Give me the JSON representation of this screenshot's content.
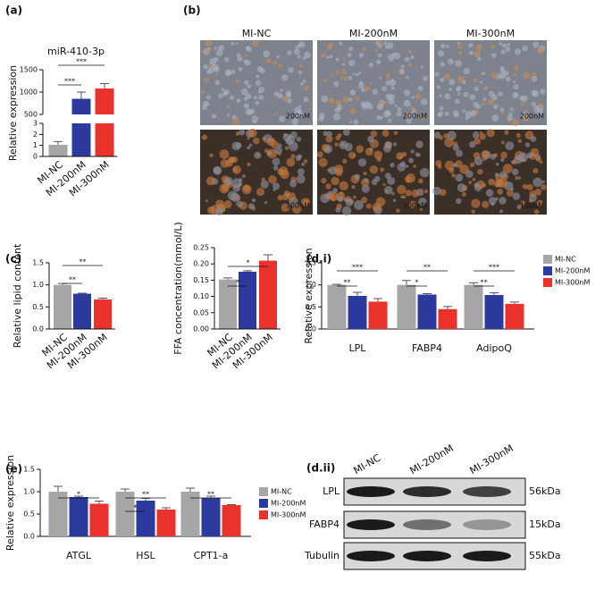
{
  "panel_labels": [
    "(a)",
    "(b)",
    "(c)",
    "(d.i)",
    "(e)",
    "(d.ii)"
  ],
  "chart_data": [
    {
      "type": "bar",
      "title": "miR-410-3p",
      "ylabel": "Relative expression",
      "categories": [
        "MI-NC",
        "MI-200nM",
        "MI-300nM"
      ],
      "values": [
        1.05,
        850,
        1080
      ],
      "errors": [
        0.3,
        150,
        110
      ],
      "colors": [
        "#a6a6a6",
        "#2b3a9c",
        "#e8322b"
      ],
      "axis_segments": [
        {
          "ylim": [
            0,
            3
          ],
          "yticks": [
            0,
            1,
            2,
            3
          ]
        },
        {
          "ylim": [
            500,
            1500
          ],
          "yticks": [
            500,
            1000,
            1500
          ]
        }
      ],
      "annotations": [
        "***",
        "***"
      ]
    },
    {
      "type": "bar",
      "ylabel": "Relative lipid content",
      "categories": [
        "MI-NC",
        "MI-200nM",
        "MI-300nM"
      ],
      "values": [
        1.0,
        0.8,
        0.67
      ],
      "errors": [
        0.03,
        0.01,
        0.03
      ],
      "colors": [
        "#a6a6a6",
        "#2b3a9c",
        "#e8322b"
      ],
      "ylim": [
        0,
        1.5
      ],
      "yticks": [
        {
          "value": 0,
          "label": "0.0"
        },
        {
          "value": 0.5,
          "label": "0.5"
        },
        {
          "value": 1,
          "label": "1.0"
        },
        {
          "value": 1.5,
          "label": "1.5"
        }
      ],
      "annotations": [
        "**",
        "**"
      ]
    },
    {
      "type": "bar",
      "ylabel": "FFA concentration(mmol/L)",
      "categories": [
        "MI-NC",
        "MI-200nM",
        "MI-300nM"
      ],
      "values": [
        0.152,
        0.176,
        0.21
      ],
      "errors": [
        0.005,
        0.003,
        0.018
      ],
      "colors": [
        "#a6a6a6",
        "#2b3a9c",
        "#e8322b"
      ],
      "ylim": [
        0,
        0.25
      ],
      "yticks": [
        {
          "value": 0,
          "label": "0.00"
        },
        {
          "value": 0.05,
          "label": "0.05"
        },
        {
          "value": 0.1,
          "label": "0.10"
        },
        {
          "value": 0.15,
          "label": "0.15"
        },
        {
          "value": 0.2,
          "label": "0.20"
        },
        {
          "value": 0.25,
          "label": "0.25"
        }
      ],
      "annotations": [
        "*",
        "*"
      ]
    },
    {
      "type": "grouped_bar",
      "ylabel": "Relative expression",
      "categories": [
        "LPL",
        "FABP4",
        "AdipoQ"
      ],
      "series": [
        {
          "name": "MI-NC",
          "color": "#a6a6a6",
          "values": [
            1.0,
            1.0,
            1.0
          ],
          "errors": [
            0.01,
            0.1,
            0.05
          ]
        },
        {
          "name": "MI-200nM",
          "color": "#2b3a9c",
          "values": [
            0.75,
            0.78,
            0.77
          ],
          "errors": [
            0.08,
            0.02,
            0.05
          ]
        },
        {
          "name": "MI-300nM",
          "color": "#e8322b",
          "values": [
            0.62,
            0.45,
            0.57
          ],
          "errors": [
            0.07,
            0.06,
            0.04
          ]
        }
      ],
      "ylim": [
        0,
        1.5
      ],
      "yticks": [
        {
          "value": 0,
          "label": "0.0"
        },
        {
          "value": 0.5,
          "label": "0.5"
        },
        {
          "value": 1,
          "label": "1.0"
        },
        {
          "value": 1.5,
          "label": "1.5"
        }
      ],
      "legend": "right",
      "annotations": [
        "***",
        "**",
        "**",
        "*",
        "***",
        "**"
      ]
    },
    {
      "type": "grouped_bar",
      "ylabel": "Relative expression",
      "categories": [
        "ATGL",
        "HSL",
        "CPT1-a"
      ],
      "series": [
        {
          "name": "MI-NC",
          "color": "#a6a6a6",
          "values": [
            1.0,
            1.0,
            1.0
          ],
          "errors": [
            0.12,
            0.06,
            0.08
          ]
        },
        {
          "name": "MI-200nM",
          "color": "#2b3a9c",
          "values": [
            0.88,
            0.8,
            0.86
          ],
          "errors": [
            0.02,
            0.05,
            0.04
          ]
        },
        {
          "name": "MI-300nM",
          "color": "#e8322b",
          "values": [
            0.73,
            0.6,
            0.7
          ],
          "errors": [
            0.06,
            0.04,
            0.01
          ]
        }
      ],
      "ylim": [
        0,
        1.5
      ],
      "yticks": [
        {
          "value": 0,
          "label": "0.0"
        },
        {
          "value": 0.5,
          "label": "0.5"
        },
        {
          "value": 1,
          "label": "1.0"
        },
        {
          "value": 1.5,
          "label": "1.5"
        }
      ],
      "legend": "right",
      "annotations": [
        "*",
        "**",
        "*",
        "**"
      ]
    }
  ],
  "images": {
    "columns": [
      "MI-NC",
      "MI-200nM",
      "MI-300nM"
    ],
    "scale_labels": [
      [
        "200nM",
        "200nM",
        "200nM"
      ],
      [
        "100nM",
        "100nM",
        "100nM"
      ]
    ]
  },
  "blot": {
    "lanes": [
      "MI-NC",
      "MI-200nM",
      "MI-300nM"
    ],
    "rows": [
      {
        "label": "LPL",
        "size": "56kDa"
      },
      {
        "label": "FABP4",
        "size": "15kDa"
      },
      {
        "label": "Tubulin",
        "size": "55kDa"
      }
    ]
  }
}
